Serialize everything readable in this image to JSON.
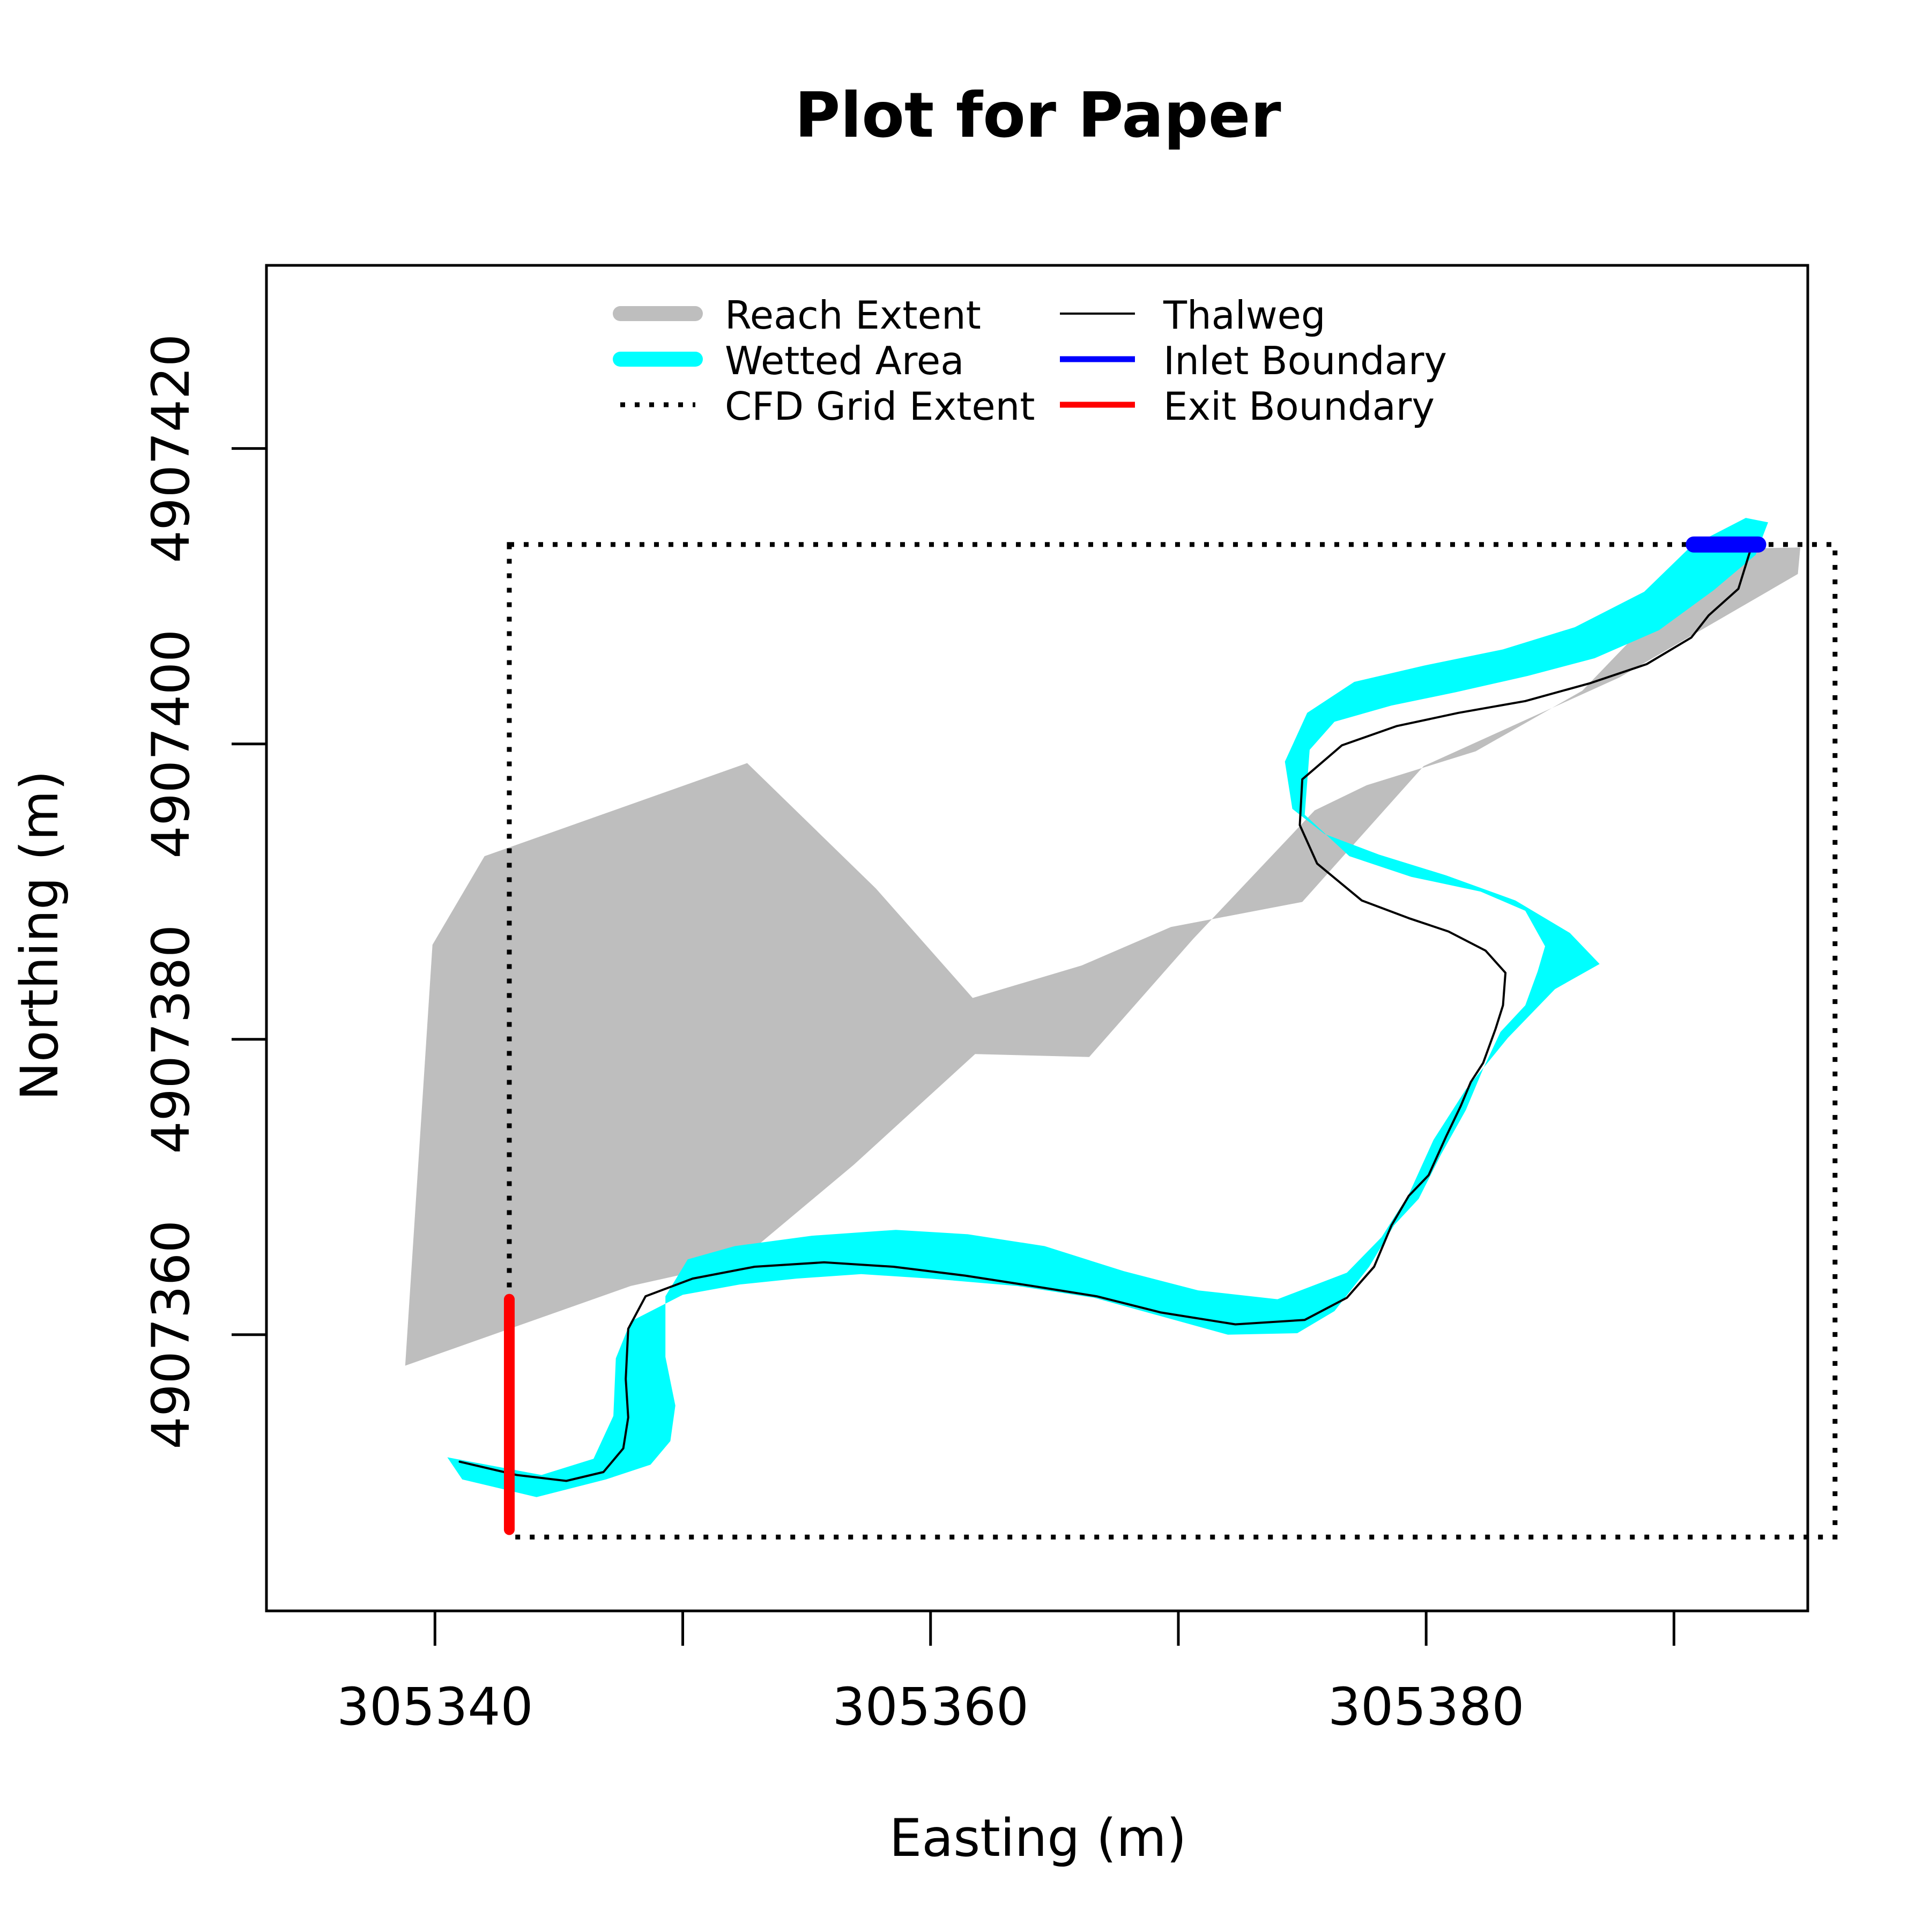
{
  "chart_data": {
    "type": "line",
    "title": "Plot for Paper",
    "xlabel": "Easting (m)",
    "ylabel": "Northing (m)",
    "xlim": [
      305333.2,
      305395.4
    ],
    "ylim": [
      4907341.3,
      4907432.4
    ],
    "xticks": [
      305340,
      305350,
      305360,
      305370,
      305380,
      305390
    ],
    "xtick_labels": [
      "305340",
      "",
      "305360",
      "",
      "305380",
      ""
    ],
    "yticks": [
      4907360,
      4907380,
      4907400,
      4907420
    ],
    "ytick_labels": [
      "4907360",
      "4907380",
      "4907400",
      "4907420"
    ],
    "grid": false,
    "legend": {
      "position": "top",
      "entries": [
        {
          "label": "Reach Extent",
          "color": "#bebebe",
          "style": "thick"
        },
        {
          "label": "Wetted Area",
          "color": "#00ffff",
          "style": "thick"
        },
        {
          "label": "CFD Grid Extent",
          "color": "#000000",
          "style": "dotted"
        },
        {
          "label": "Thalweg",
          "color": "#000000",
          "style": "thin"
        },
        {
          "label": "Inlet Boundary",
          "color": "#0000ff",
          "style": "solid"
        },
        {
          "label": "Exit Boundary",
          "color": "#ff0000",
          "style": "solid"
        }
      ]
    },
    "series": [
      {
        "name": "Reach Extent",
        "kind": "polygon",
        "color": "#bebebe",
        "x": [
          305338.8,
          305347.9,
          305352.2,
          305356.9,
          305361.8,
          305366.4,
          305370.6,
          305375.5,
          305377.6,
          305382.0,
          305386.3,
          305391.8,
          305395.1,
          305395.0,
          305387.8,
          305379.9,
          305375.0,
          305369.7,
          305366.1,
          305361.7,
          305357.8,
          305352.6,
          305342.0,
          305339.9
        ],
        "y": [
          4907357.9,
          4907363.3,
          4907364.9,
          4907371.5,
          4907379.0,
          4907378.8,
          4907386.8,
          4907395.5,
          4907397.2,
          4907399.5,
          4907403.6,
          4907413.2,
          4907413.3,
          4907411.5,
          4907404.5,
          4907398.5,
          4907389.3,
          4907387.6,
          4907385.0,
          4907382.8,
          4907390.2,
          4907398.7,
          4907392.4,
          4907386.4
        ]
      },
      {
        "name": "Wetted Area",
        "kind": "polygon",
        "color": "#00ffff",
        "x": [
          305340.5,
          305344.3,
          305346.4,
          305347.2,
          305347.3,
          305347.9,
          305350.0,
          305352.3,
          305354.6,
          305357.2,
          305360.0,
          305363.5,
          305366.6,
          305369.2,
          305372.0,
          305374.8,
          305376.3,
          305377.7,
          305378.7,
          305379.7,
          305380.6,
          305381.6,
          305382.3,
          305383.0,
          305384.0,
          305384.5,
          305384.8,
          305384.0,
          305382.2,
          305379.4,
          305376.9,
          305375.1,
          305375.3,
          305376.3,
          305378.6,
          305381.2,
          305384.1,
          305386.8,
          305389.4,
          305391.6,
          305393.3,
          305393.8,
          305392.9,
          305390.7,
          305388.8,
          305386.0,
          305383.1,
          305379.9,
          305377.1,
          305375.2,
          305374.3,
          305374.6,
          305375.9,
          305378.1,
          305380.8,
          305383.6,
          305385.8,
          305387.0,
          305385.2,
          305383.3,
          305381.6,
          305380.3,
          305379.3,
          305378.2,
          305376.8,
          305374.0,
          305370.8,
          305367.8,
          305364.6,
          305361.5,
          305358.6,
          305355.2,
          305352.1,
          305350.2,
          305349.3,
          305349.3,
          305349.7,
          305349.5,
          305348.7,
          305346.9,
          305344.1,
          305341.1
        ],
        "y": [
          4907351.7,
          4907350.5,
          4907351.6,
          4907354.5,
          4907358.4,
          4907360.9,
          4907362.7,
          4907363.4,
          4907363.8,
          4907364.1,
          4907363.8,
          4907363.3,
          4907362.5,
          4907361.3,
          4907360.0,
          4907360.1,
          4907361.6,
          4907364.6,
          4907367.4,
          4907369.2,
          4907372.2,
          4907375.2,
          4907378.0,
          4907380.5,
          4907382.3,
          4907384.6,
          4907386.3,
          4907388.7,
          4907390.0,
          4907391.0,
          4907392.4,
          4907395.2,
          4907399.6,
          4907401.5,
          4907402.6,
          4907403.5,
          4907404.6,
          4907405.8,
          4907407.7,
          4907410.4,
          4907412.8,
          4907415.0,
          4907415.3,
          4907413.4,
          4907410.3,
          4907407.9,
          4907406.4,
          4907405.3,
          4907404.2,
          4907402.1,
          4907398.8,
          4907395.6,
          4907393.9,
          4907392.5,
          4907391.1,
          4907389.4,
          4907387.2,
          4907385.1,
          4907383.4,
          4907380.1,
          4907376.6,
          4907373.2,
          4907369.5,
          4907366.6,
          4907364.2,
          4907362.4,
          4907363.0,
          4907364.3,
          4907366.0,
          4907366.8,
          4907367.1,
          4907366.7,
          4907366.0,
          4907365.1,
          4907362.6,
          4907358.5,
          4907355.2,
          4907352.8,
          4907351.2,
          4907350.2,
          4907349.0,
          4907350.2
        ]
      },
      {
        "name": "CFD Grid Extent",
        "kind": "rect",
        "color": "#000000",
        "x": [
          305343.0,
          305396.5
        ],
        "y": [
          4907346.3,
          4907413.5
        ]
      },
      {
        "name": "Thalweg",
        "kind": "line",
        "color": "#000000",
        "x": [
          305341.0,
          305343.3,
          305345.3,
          305346.8,
          305347.6,
          305347.8,
          305347.7,
          305347.8,
          305348.5,
          305350.4,
          305352.9,
          305355.7,
          305358.5,
          305361.4,
          305364.1,
          305366.7,
          305369.3,
          305372.3,
          305375.1,
          305376.8,
          305377.9,
          305378.6,
          305379.3,
          305380.1,
          305380.8,
          305381.4,
          305381.8,
          305382.3,
          305382.8,
          305383.1,
          305383.2,
          305382.4,
          305380.9,
          305379.3,
          305377.4,
          305375.6,
          305374.9,
          305375.0,
          305376.6,
          305378.8,
          305381.3,
          305384.0,
          305386.6,
          305388.9,
          305390.7,
          305391.4,
          305392.6,
          305393.1
        ],
        "y": [
          4907351.4,
          4907350.5,
          4907350.1,
          4907350.7,
          4907352.3,
          4907354.4,
          4907357.0,
          4907360.4,
          4907362.6,
          4907363.8,
          4907364.6,
          4907364.9,
          4907364.6,
          4907364.0,
          4907363.3,
          4907362.6,
          4907361.5,
          4907360.7,
          4907361.0,
          4907362.5,
          4907364.6,
          4907367.4,
          4907369.4,
          4907370.8,
          4907373.4,
          4907375.5,
          4907377.1,
          4907378.4,
          4907380.7,
          4907382.3,
          4907384.5,
          4907386.0,
          4907387.3,
          4907388.2,
          4907389.4,
          4907391.9,
          4907394.5,
          4907397.6,
          4907399.9,
          4907401.2,
          4907402.1,
          4907402.9,
          4907404.1,
          4907405.4,
          4907407.2,
          4907408.7,
          4907410.5,
          4907413.2
        ]
      },
      {
        "name": "Inlet Boundary",
        "kind": "line",
        "color": "#0000ff",
        "x": [
          305390.8,
          305393.4
        ],
        "y": [
          4907413.5,
          4907413.5
        ]
      },
      {
        "name": "Exit Boundary",
        "kind": "line",
        "color": "#ff0000",
        "x": [
          305343.0,
          305343.0
        ],
        "y": [
          4907346.8,
          4907362.4
        ]
      }
    ]
  }
}
